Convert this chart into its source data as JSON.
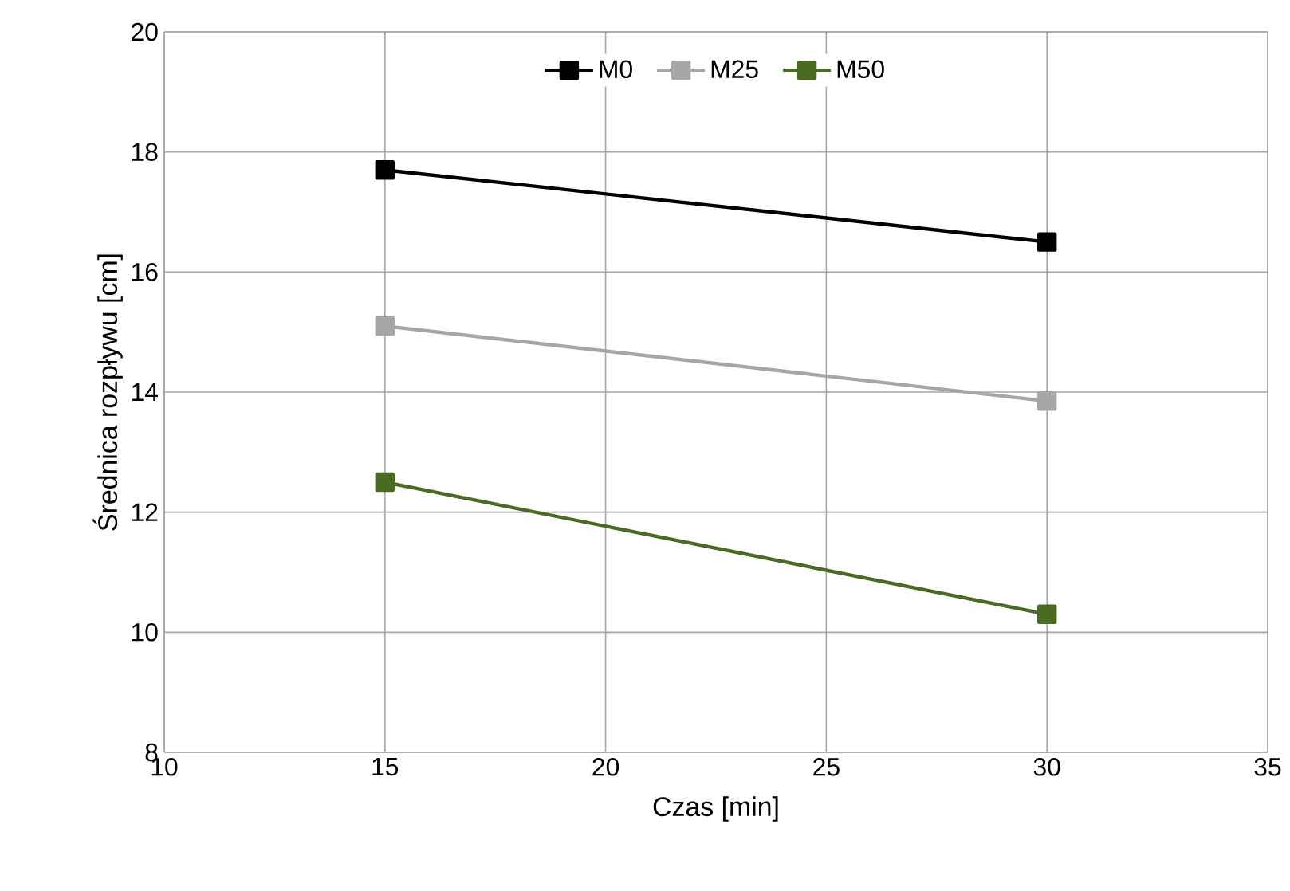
{
  "chart_data": {
    "type": "line",
    "xlabel": "Czas [min]",
    "ylabel": "Średnica rozpływu [cm]",
    "x": [
      15,
      30
    ],
    "series": [
      {
        "name": "M0",
        "color": "#000000",
        "values": [
          17.7,
          16.5
        ]
      },
      {
        "name": "M25",
        "color": "#a6a6a6",
        "values": [
          15.1,
          13.85
        ]
      },
      {
        "name": "M50",
        "color": "#4a6b22",
        "values": [
          12.5,
          10.3
        ]
      }
    ],
    "xlim": [
      10,
      35
    ],
    "xticks": [
      10,
      15,
      20,
      25,
      30,
      35
    ],
    "ylim": [
      8,
      20
    ],
    "yticks": [
      8,
      10,
      12,
      14,
      16,
      18,
      20
    ],
    "grid": true,
    "legend": "top",
    "marker": "square",
    "line_style": "solid"
  }
}
